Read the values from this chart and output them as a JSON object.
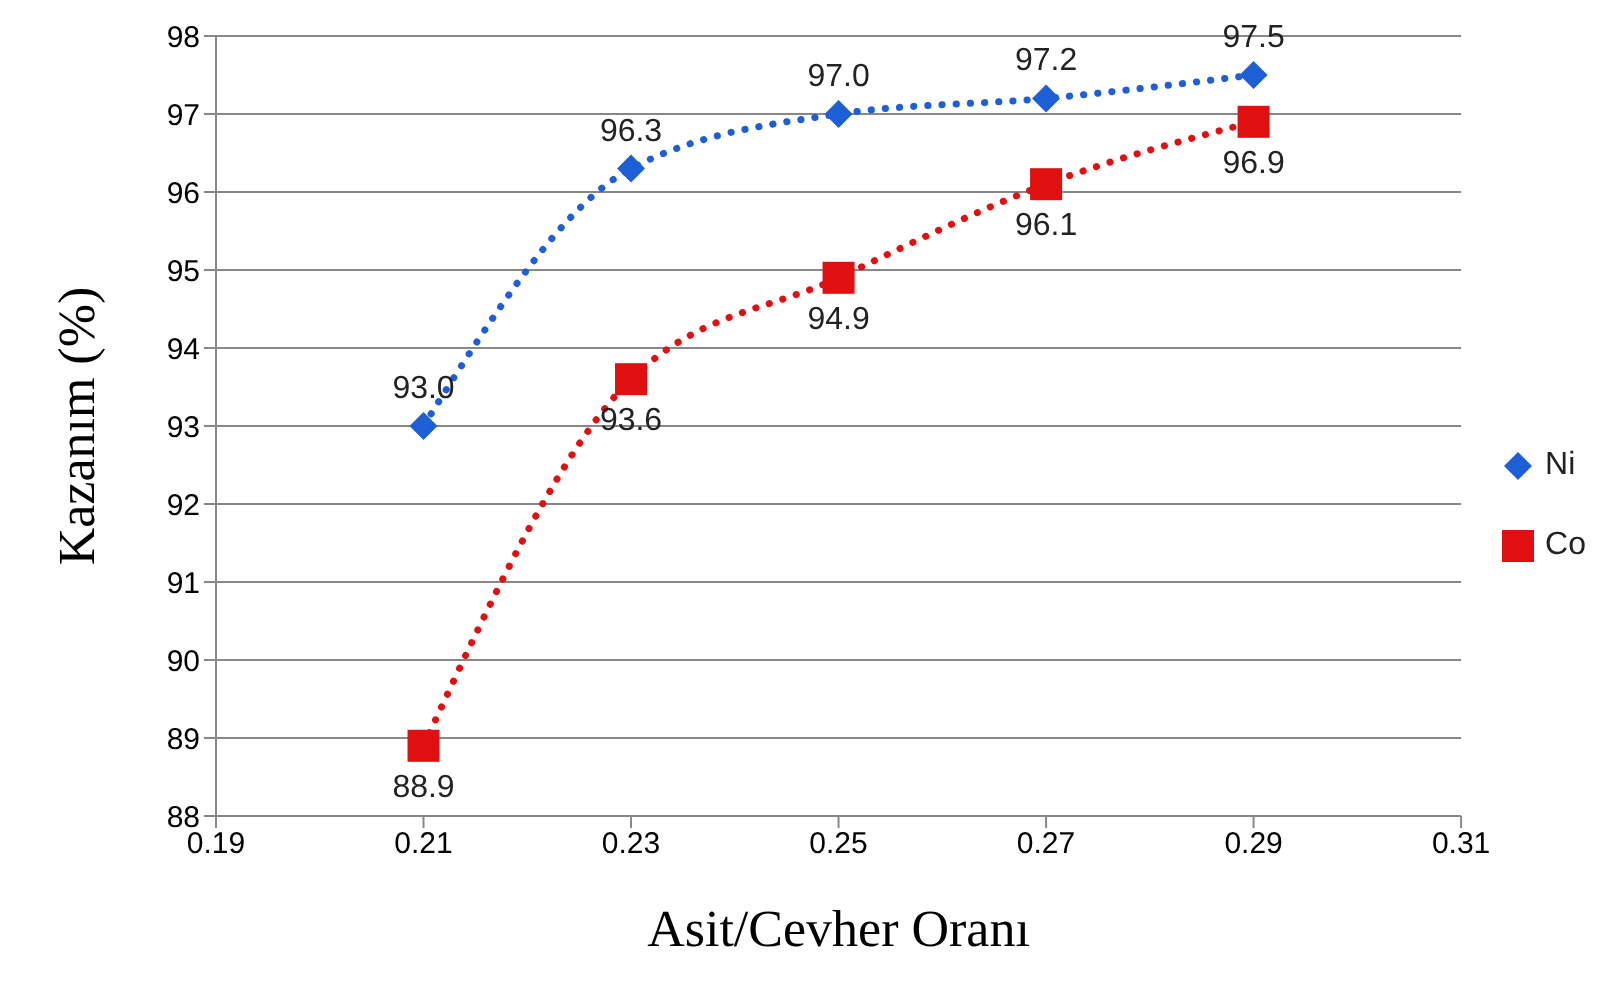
{
  "chart_data": {
    "type": "line",
    "xlabel": "Asit/Cevher Oranı",
    "ylabel": "Kazanım (%)",
    "x": [
      0.21,
      0.23,
      0.25,
      0.27,
      0.29
    ],
    "series": [
      {
        "name": "Ni",
        "color": "#1f5fd6",
        "marker": "diamond",
        "values": [
          93.0,
          96.3,
          97.0,
          97.2,
          97.5
        ],
        "value_labels": [
          "93.0",
          "96.3",
          "97.0",
          "97.2",
          "97.5"
        ]
      },
      {
        "name": "Co",
        "color": "#e01010",
        "marker": "square",
        "values": [
          88.9,
          93.6,
          94.9,
          96.1,
          96.9
        ],
        "value_labels": [
          "88.9",
          "93.6",
          "94.9",
          "96.1",
          "96.9"
        ]
      }
    ],
    "xlim": [
      0.19,
      0.31
    ],
    "xticks": [
      {
        "value": 0.19,
        "label": "0.19"
      },
      {
        "value": 0.21,
        "label": "0.21"
      },
      {
        "value": 0.23,
        "label": "0.23"
      },
      {
        "value": 0.25,
        "label": "0.25"
      },
      {
        "value": 0.27,
        "label": "0.27"
      },
      {
        "value": 0.29,
        "label": "0.29"
      },
      {
        "value": 0.31,
        "label": "0.31"
      }
    ],
    "ylim": [
      88,
      98
    ],
    "yticks": [
      88,
      89,
      90,
      91,
      92,
      93,
      94,
      95,
      96,
      97,
      98
    ],
    "grid": "y",
    "legend": "right",
    "line_style": "dotted"
  }
}
